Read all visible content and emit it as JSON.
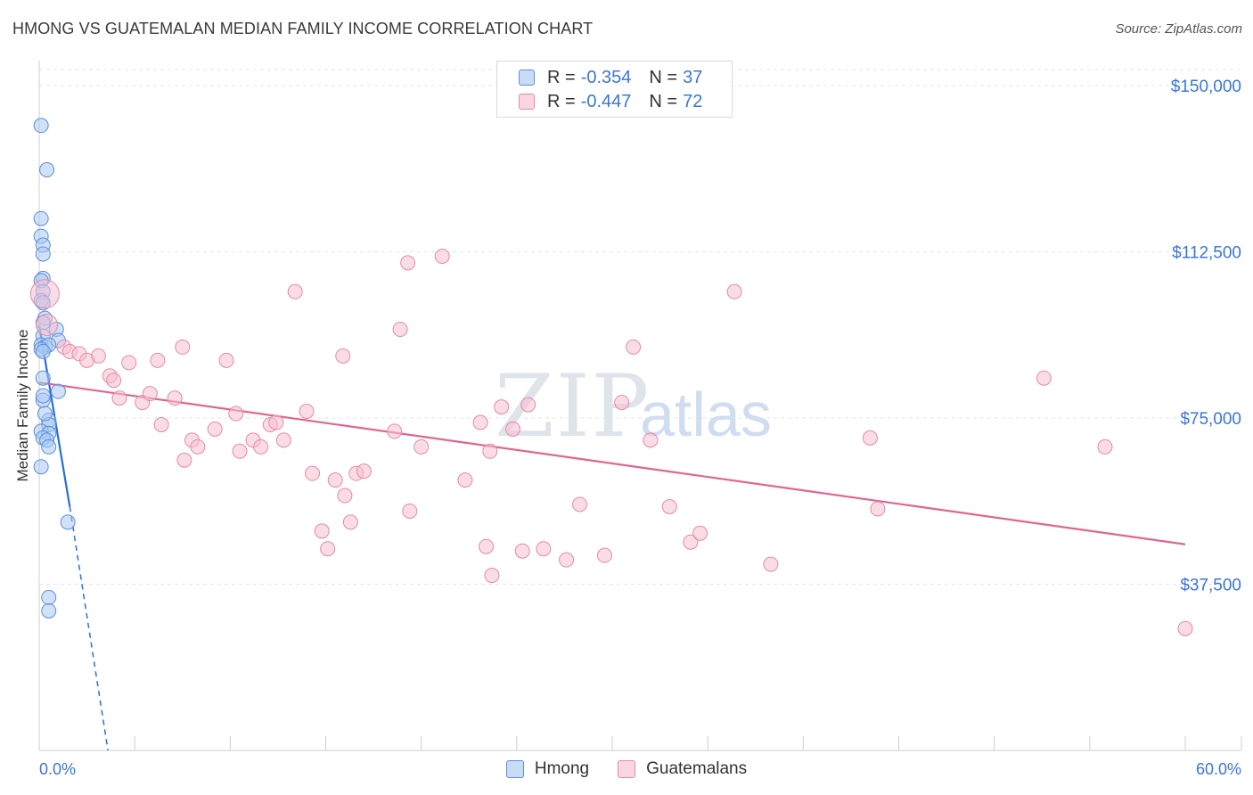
{
  "header": {
    "title": "HMONG VS GUATEMALAN MEDIAN FAMILY INCOME CORRELATION CHART",
    "source": "Source: ZipAtlas.com"
  },
  "watermark": {
    "zip": "ZIP",
    "atlas": "atlas"
  },
  "legend": {
    "rows": [
      {
        "r_label": "R =",
        "r_value": "-0.354",
        "n_label": "N =",
        "n_value": "37",
        "color": "#a9c8f2"
      },
      {
        "r_label": "R =",
        "r_value": "-0.447",
        "n_label": "N =",
        "n_value": "72",
        "color": "#f6bfd0"
      }
    ]
  },
  "bottom_legend": [
    {
      "label": "Hmong",
      "color": "#a9c8f2"
    },
    {
      "label": "Guatemalans",
      "color": "#f6bfd0"
    }
  ],
  "chart_data": {
    "type": "scatter",
    "title": "HMONG VS GUATEMALAN MEDIAN FAMILY INCOME CORRELATION CHART",
    "xlabel": "",
    "ylabel": "Median Family Income",
    "xlim": [
      0,
      60
    ],
    "ylim": [
      0,
      155000
    ],
    "x_tick_labels": [
      {
        "value": 0,
        "label": "0.0%"
      },
      {
        "value": 60,
        "label": "60.0%"
      }
    ],
    "y_tick_labels": [
      {
        "value": 37500,
        "label": "$37,500"
      },
      {
        "value": 75000,
        "label": "$75,000"
      },
      {
        "value": 112500,
        "label": "$112,500"
      },
      {
        "value": 150000,
        "label": "$150,000"
      }
    ],
    "series": [
      {
        "name": "Hmong",
        "color": "#a9c8f2",
        "stroke": "#5b8fd8",
        "line_color": "#2a6fd6",
        "trend": {
          "x0": 0,
          "y0": 96000,
          "x1": 1.6,
          "y1": 55000,
          "dash_to_x": 3.6,
          "dash_to_y": 0
        },
        "points": [
          [
            0.1,
            141000
          ],
          [
            0.4,
            131000
          ],
          [
            0.1,
            120000
          ],
          [
            0.1,
            116000
          ],
          [
            0.2,
            114000
          ],
          [
            0.2,
            112000
          ],
          [
            0.2,
            106500
          ],
          [
            0.1,
            106000
          ],
          [
            0.2,
            103500
          ],
          [
            0.1,
            101500
          ],
          [
            0.2,
            101000
          ],
          [
            0.3,
            97500
          ],
          [
            0.2,
            96500
          ],
          [
            0.9,
            95000
          ],
          [
            0.2,
            93500
          ],
          [
            1.0,
            92500
          ],
          [
            0.1,
            91500
          ],
          [
            0.3,
            91000
          ],
          [
            0.5,
            91500
          ],
          [
            0.1,
            90500
          ],
          [
            0.2,
            90000
          ],
          [
            1.0,
            81000
          ],
          [
            0.2,
            79000
          ],
          [
            0.5,
            74500
          ],
          [
            0.5,
            73500
          ],
          [
            0.1,
            72000
          ],
          [
            0.5,
            71500
          ],
          [
            0.2,
            70500
          ],
          [
            0.4,
            70000
          ],
          [
            0.5,
            68500
          ],
          [
            0.1,
            64000
          ],
          [
            1.5,
            51500
          ],
          [
            0.5,
            34500
          ],
          [
            0.5,
            31500
          ],
          [
            0.2,
            80000
          ],
          [
            0.3,
            76000
          ],
          [
            0.2,
            84000
          ]
        ]
      },
      {
        "name": "Guatemalans",
        "color": "#f6bfd0",
        "stroke": "#e58aa7",
        "line_color": "#e0658f",
        "trend": {
          "x0": 0,
          "y0": 83000,
          "x1": 60,
          "y1": 46500
        },
        "points": [
          [
            0.3,
            103000
          ],
          [
            0.4,
            96000
          ],
          [
            1.3,
            91000
          ],
          [
            1.6,
            90000
          ],
          [
            2.1,
            89500
          ],
          [
            3.1,
            89000
          ],
          [
            2.5,
            88000
          ],
          [
            3.7,
            84500
          ],
          [
            3.9,
            83500
          ],
          [
            4.7,
            87500
          ],
          [
            6.2,
            88000
          ],
          [
            7.5,
            91000
          ],
          [
            9.8,
            88000
          ],
          [
            15.9,
            89000
          ],
          [
            19.3,
            110000
          ],
          [
            21.1,
            111500
          ],
          [
            18.9,
            95000
          ],
          [
            13.4,
            103500
          ],
          [
            4.2,
            79500
          ],
          [
            5.4,
            78500
          ],
          [
            5.8,
            80500
          ],
          [
            7.1,
            79500
          ],
          [
            6.4,
            73500
          ],
          [
            8.0,
            70000
          ],
          [
            8.3,
            68500
          ],
          [
            7.6,
            65500
          ],
          [
            9.2,
            72500
          ],
          [
            10.3,
            76000
          ],
          [
            10.5,
            67500
          ],
          [
            11.2,
            70000
          ],
          [
            11.6,
            68500
          ],
          [
            12.1,
            73500
          ],
          [
            12.4,
            74000
          ],
          [
            12.8,
            70000
          ],
          [
            14.0,
            76500
          ],
          [
            14.3,
            62500
          ],
          [
            15.5,
            61000
          ],
          [
            16.0,
            57500
          ],
          [
            16.6,
            62500
          ],
          [
            17.0,
            63000
          ],
          [
            16.3,
            51500
          ],
          [
            18.6,
            72000
          ],
          [
            20.0,
            68500
          ],
          [
            19.4,
            54000
          ],
          [
            22.3,
            61000
          ],
          [
            23.1,
            74000
          ],
          [
            23.4,
            46000
          ],
          [
            23.7,
            39500
          ],
          [
            23.6,
            67500
          ],
          [
            24.2,
            77500
          ],
          [
            24.8,
            72500
          ],
          [
            25.6,
            78000
          ],
          [
            25.3,
            45000
          ],
          [
            26.4,
            45500
          ],
          [
            27.6,
            43000
          ],
          [
            28.3,
            55500
          ],
          [
            29.6,
            44000
          ],
          [
            30.5,
            78500
          ],
          [
            31.1,
            91000
          ],
          [
            32.0,
            70000
          ],
          [
            33.0,
            55000
          ],
          [
            34.1,
            47000
          ],
          [
            34.6,
            49000
          ],
          [
            36.4,
            103500
          ],
          [
            38.3,
            42000
          ],
          [
            43.5,
            70500
          ],
          [
            43.9,
            54500
          ],
          [
            52.6,
            84000
          ],
          [
            55.8,
            68500
          ],
          [
            60.0,
            27500
          ],
          [
            14.8,
            49500
          ],
          [
            15.1,
            45500
          ]
        ]
      }
    ]
  }
}
